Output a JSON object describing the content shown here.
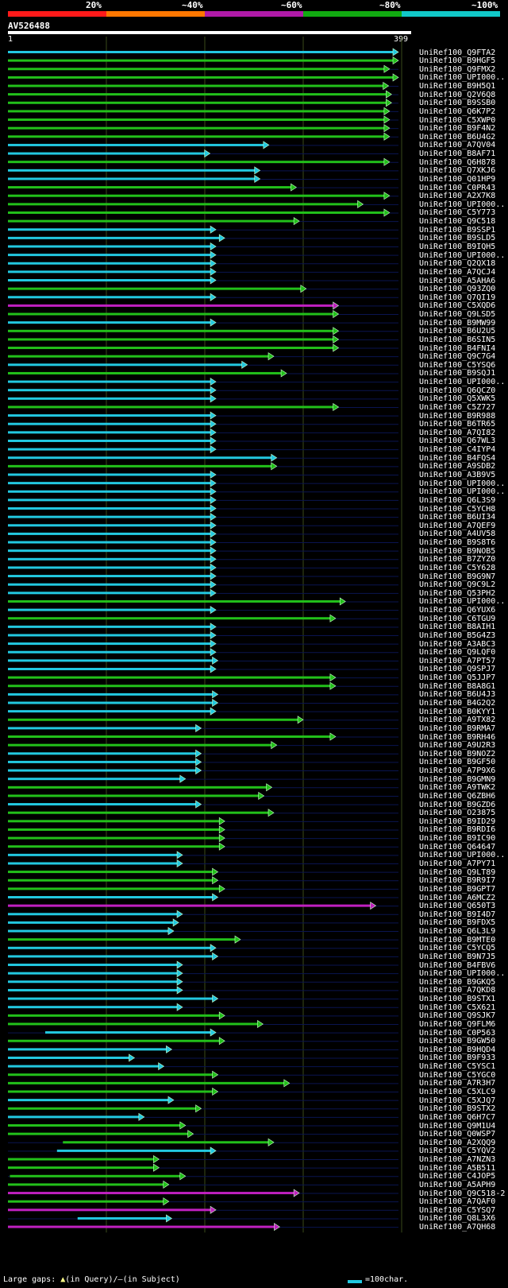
{
  "colors": {
    "band1": "#ff1a1a",
    "band2": "#ff7700",
    "band3": "#b01aa8",
    "band4": "#11aa11",
    "band5": "#11c8c8",
    "cyan": "#22c8e0",
    "green": "#22c01a",
    "magenta": "#c020c0",
    "guide": "#3a4a1a"
  },
  "scale": {
    "labels": [
      "20%",
      "~40%",
      "~60%",
      "~80%",
      "~100%"
    ]
  },
  "query": {
    "name": "AV526488",
    "start": "1",
    "end": "399"
  },
  "hits": [
    {
      "name": "UniRef100_Q9FTA2",
      "c": "c",
      "s": 1,
      "e": 399
    },
    {
      "name": "UniRef100_B9HGF5",
      "c": "g",
      "s": 1,
      "e": 399
    },
    {
      "name": "UniRef100_Q9FMX2",
      "c": "g",
      "s": 1,
      "e": 390
    },
    {
      "name": "UniRef100_UPI000..",
      "c": "g",
      "s": 1,
      "e": 399
    },
    {
      "name": "UniRef100_B9H5Q1",
      "c": "g",
      "s": 1,
      "e": 389
    },
    {
      "name": "UniRef100_Q2V6Q8",
      "c": "g",
      "s": 1,
      "e": 392
    },
    {
      "name": "UniRef100_B9SSB0",
      "c": "g",
      "s": 1,
      "e": 392
    },
    {
      "name": "UniRef100_Q6K7P2",
      "c": "g",
      "s": 1,
      "e": 390
    },
    {
      "name": "UniRef100_C5XWP0",
      "c": "g",
      "s": 1,
      "e": 390
    },
    {
      "name": "UniRef100_B9F4N2",
      "c": "g",
      "s": 1,
      "e": 390
    },
    {
      "name": "UniRef100_B6U4G2",
      "c": "g",
      "s": 1,
      "e": 390
    },
    {
      "name": "UniRef100_A7QV04",
      "c": "c",
      "s": 1,
      "e": 267
    },
    {
      "name": "UniRef100_B8AF71",
      "c": "c",
      "s": 1,
      "e": 207
    },
    {
      "name": "UniRef100_Q6H878",
      "c": "g",
      "s": 1,
      "e": 390
    },
    {
      "name": "UniRef100_Q7XKJ6",
      "c": "c",
      "s": 1,
      "e": 258
    },
    {
      "name": "UniRef100_Q01HP9",
      "c": "c",
      "s": 1,
      "e": 258
    },
    {
      "name": "UniRef100_C0PR43",
      "c": "g",
      "s": 1,
      "e": 295
    },
    {
      "name": "UniRef100_A2X7K8",
      "c": "g",
      "s": 1,
      "e": 390
    },
    {
      "name": "UniRef100_UPI000..",
      "c": "g",
      "s": 1,
      "e": 363
    },
    {
      "name": "UniRef100_C5Y773",
      "c": "g",
      "s": 1,
      "e": 390
    },
    {
      "name": "UniRef100_Q9C518",
      "c": "g",
      "s": 1,
      "e": 298
    },
    {
      "name": "UniRef100_B9SSP1",
      "c": "c",
      "s": 1,
      "e": 213
    },
    {
      "name": "UniRef100_B9SLD5",
      "c": "c",
      "s": 1,
      "e": 222
    },
    {
      "name": "UniRef100_B9IQH5",
      "c": "c",
      "s": 1,
      "e": 213
    },
    {
      "name": "UniRef100_UPI000..",
      "c": "c",
      "s": 1,
      "e": 213
    },
    {
      "name": "UniRef100_Q2QX18",
      "c": "c",
      "s": 1,
      "e": 213
    },
    {
      "name": "UniRef100_A7QCJ4",
      "c": "c",
      "s": 1,
      "e": 213
    },
    {
      "name": "UniRef100_A5AHA6",
      "c": "c",
      "s": 1,
      "e": 213
    },
    {
      "name": "UniRef100_Q93ZQ0",
      "c": "g",
      "s": 1,
      "e": 305
    },
    {
      "name": "UniRef100_Q7QI19",
      "c": "c",
      "s": 1,
      "e": 213
    },
    {
      "name": "UniRef100_C5XQD6",
      "c": "m",
      "s": 1,
      "e": 338
    },
    {
      "name": "UniRef100_Q9LSD5",
      "c": "g",
      "s": 1,
      "e": 338
    },
    {
      "name": "UniRef100_B9MW99",
      "c": "c",
      "s": 1,
      "e": 213
    },
    {
      "name": "UniRef100_B6U2U5",
      "c": "g",
      "s": 1,
      "e": 338
    },
    {
      "name": "UniRef100_B6SIN5",
      "c": "g",
      "s": 1,
      "e": 338
    },
    {
      "name": "UniRef100_B4FNI4",
      "c": "g",
      "s": 1,
      "e": 338
    },
    {
      "name": "UniRef100_Q9C7G4",
      "c": "g",
      "s": 1,
      "e": 272
    },
    {
      "name": "UniRef100_C5YSQ6",
      "c": "c",
      "s": 1,
      "e": 245
    },
    {
      "name": "UniRef100_B9SQJ1",
      "c": "g",
      "s": 1,
      "e": 285
    },
    {
      "name": "UniRef100_UPI000..",
      "c": "c",
      "s": 1,
      "e": 213
    },
    {
      "name": "UniRef100_Q6QCZ0",
      "c": "c",
      "s": 1,
      "e": 213
    },
    {
      "name": "UniRef100_Q5XWK5",
      "c": "c",
      "s": 1,
      "e": 213
    },
    {
      "name": "UniRef100_C5Z727",
      "c": "g",
      "s": 1,
      "e": 338
    },
    {
      "name": "UniRef100_B9R988",
      "c": "c",
      "s": 1,
      "e": 213
    },
    {
      "name": "UniRef100_B6TR65",
      "c": "c",
      "s": 1,
      "e": 213
    },
    {
      "name": "UniRef100_A7QI82",
      "c": "c",
      "s": 1,
      "e": 213
    },
    {
      "name": "UniRef100_Q67WL3",
      "c": "c",
      "s": 1,
      "e": 213
    },
    {
      "name": "UniRef100_C4IYP4",
      "c": "c",
      "s": 1,
      "e": 213
    },
    {
      "name": "UniRef100_B4FQS4",
      "c": "c",
      "s": 1,
      "e": 275
    },
    {
      "name": "UniRef100_A9SDB2",
      "c": "g",
      "s": 1,
      "e": 275
    },
    {
      "name": "UniRef100_A3B9V5",
      "c": "c",
      "s": 1,
      "e": 213
    },
    {
      "name": "UniRef100_UPI000..",
      "c": "c",
      "s": 1,
      "e": 213
    },
    {
      "name": "UniRef100_UPI000..",
      "c": "c",
      "s": 1,
      "e": 213
    },
    {
      "name": "UniRef100_Q6L3S9",
      "c": "c",
      "s": 1,
      "e": 213
    },
    {
      "name": "UniRef100_C5YCH8",
      "c": "c",
      "s": 1,
      "e": 213
    },
    {
      "name": "UniRef100_B6UI34",
      "c": "c",
      "s": 1,
      "e": 213
    },
    {
      "name": "UniRef100_A7QEF9",
      "c": "c",
      "s": 1,
      "e": 213
    },
    {
      "name": "UniRef100_A4UV58",
      "c": "c",
      "s": 1,
      "e": 213
    },
    {
      "name": "UniRef100_B9S8T6",
      "c": "c",
      "s": 1,
      "e": 213
    },
    {
      "name": "UniRef100_B9NOB5",
      "c": "c",
      "s": 1,
      "e": 213
    },
    {
      "name": "UniRef100_B7ZYZ0",
      "c": "c",
      "s": 1,
      "e": 213
    },
    {
      "name": "UniRef100_C5Y628",
      "c": "c",
      "s": 1,
      "e": 213
    },
    {
      "name": "UniRef100_B9G9N7",
      "c": "c",
      "s": 1,
      "e": 213
    },
    {
      "name": "UniRef100_Q9C9L2",
      "c": "c",
      "s": 1,
      "e": 213
    },
    {
      "name": "UniRef100_Q53PH2",
      "c": "c",
      "s": 1,
      "e": 213
    },
    {
      "name": "UniRef100_UPI000..",
      "c": "g",
      "s": 1,
      "e": 345
    },
    {
      "name": "UniRef100_Q6YUX6",
      "c": "c",
      "s": 1,
      "e": 213
    },
    {
      "name": "UniRef100_C6TGU9",
      "c": "g",
      "s": 1,
      "e": 335
    },
    {
      "name": "UniRef100_B8AIH1",
      "c": "c",
      "s": 1,
      "e": 213
    },
    {
      "name": "UniRef100_B5G4Z3",
      "c": "c",
      "s": 1,
      "e": 213
    },
    {
      "name": "UniRef100_A3ABC3",
      "c": "c",
      "s": 1,
      "e": 213
    },
    {
      "name": "UniRef100_Q9LQF0",
      "c": "c",
      "s": 1,
      "e": 213
    },
    {
      "name": "UniRef100_A7PT57",
      "c": "c",
      "s": 1,
      "e": 215
    },
    {
      "name": "UniRef100_Q9SPJ7",
      "c": "c",
      "s": 1,
      "e": 213
    },
    {
      "name": "UniRef100_Q5JJP7",
      "c": "g",
      "s": 1,
      "e": 335
    },
    {
      "name": "UniRef100_B8A8G1",
      "c": "g",
      "s": 1,
      "e": 335
    },
    {
      "name": "UniRef100_B6U4J3",
      "c": "c",
      "s": 1,
      "e": 215
    },
    {
      "name": "UniRef100_B4G2Q2",
      "c": "c",
      "s": 1,
      "e": 215
    },
    {
      "name": "UniRef100_B0KYY1",
      "c": "c",
      "s": 1,
      "e": 213
    },
    {
      "name": "UniRef100_A9TX82",
      "c": "g",
      "s": 1,
      "e": 302
    },
    {
      "name": "UniRef100_B9RMA7",
      "c": "c",
      "s": 1,
      "e": 198
    },
    {
      "name": "UniRef100_B9RH46",
      "c": "g",
      "s": 1,
      "e": 335
    },
    {
      "name": "UniRef100_A9U2R3",
      "c": "g",
      "s": 1,
      "e": 275
    },
    {
      "name": "UniRef100_B9NOZ2",
      "c": "c",
      "s": 1,
      "e": 198
    },
    {
      "name": "UniRef100_B9GF50",
      "c": "c",
      "s": 1,
      "e": 198
    },
    {
      "name": "UniRef100_A7P9X6",
      "c": "c",
      "s": 1,
      "e": 198
    },
    {
      "name": "UniRef100_B9GMN9",
      "c": "c",
      "s": 1,
      "e": 182
    },
    {
      "name": "UniRef100_A9TWK2",
      "c": "g",
      "s": 1,
      "e": 270
    },
    {
      "name": "UniRef100_Q6ZBH6",
      "c": "g",
      "s": 1,
      "e": 262
    },
    {
      "name": "UniRef100_B9GZD6",
      "c": "c",
      "s": 1,
      "e": 198
    },
    {
      "name": "UniRef100_O23875",
      "c": "g",
      "s": 1,
      "e": 272
    },
    {
      "name": "UniRef100_B9ID29",
      "c": "g",
      "s": 1,
      "e": 222
    },
    {
      "name": "UniRef100_B9RDI6",
      "c": "g",
      "s": 1,
      "e": 222
    },
    {
      "name": "UniRef100_B9IC90",
      "c": "g",
      "s": 1,
      "e": 222
    },
    {
      "name": "UniRef100_Q64647",
      "c": "g",
      "s": 1,
      "e": 222
    },
    {
      "name": "UniRef100_UPI000..",
      "c": "c",
      "s": 1,
      "e": 179
    },
    {
      "name": "UniRef100_A7PY71",
      "c": "c",
      "s": 1,
      "e": 179
    },
    {
      "name": "UniRef100_Q9LT89",
      "c": "g",
      "s": 1,
      "e": 215
    },
    {
      "name": "UniRef100_B9R9I7",
      "c": "g",
      "s": 1,
      "e": 215
    },
    {
      "name": "UniRef100_B9GPT7",
      "c": "g",
      "s": 1,
      "e": 222
    },
    {
      "name": "UniRef100_A6MCZ2",
      "c": "c",
      "s": 1,
      "e": 215
    },
    {
      "name": "UniRef100_Q650T3",
      "c": "m",
      "s": 1,
      "e": 376
    },
    {
      "name": "UniRef100_B9I4D7",
      "c": "c",
      "s": 1,
      "e": 179
    },
    {
      "name": "UniRef100_B9FDX5",
      "c": "c",
      "s": 1,
      "e": 175
    },
    {
      "name": "UniRef100_Q6L3L9",
      "c": "c",
      "s": 1,
      "e": 170
    },
    {
      "name": "UniRef100_B9MTE0",
      "c": "g",
      "s": 1,
      "e": 238
    },
    {
      "name": "UniRef100_C5YCQ5",
      "c": "c",
      "s": 1,
      "e": 213
    },
    {
      "name": "UniRef100_B9N7J5",
      "c": "c",
      "s": 1,
      "e": 215
    },
    {
      "name": "UniRef100_B4FBV6",
      "c": "c",
      "s": 1,
      "e": 179
    },
    {
      "name": "UniRef100_UPI000..",
      "c": "c",
      "s": 1,
      "e": 179
    },
    {
      "name": "UniRef100_B9GKQ5",
      "c": "c",
      "s": 1,
      "e": 179
    },
    {
      "name": "UniRef100_A7QKD8",
      "c": "c",
      "s": 1,
      "e": 179
    },
    {
      "name": "UniRef100_B9STX1",
      "c": "c",
      "s": 1,
      "e": 215
    },
    {
      "name": "UniRef100_C5X621",
      "c": "c",
      "s": 1,
      "e": 179
    },
    {
      "name": "UniRef100_Q9SJK7",
      "c": "g",
      "s": 1,
      "e": 222
    },
    {
      "name": "UniRef100_Q9FLM6",
      "c": "g",
      "s": 1,
      "e": 261
    },
    {
      "name": "UniRef100_C0P563",
      "c": "c",
      "s": 39,
      "e": 213
    },
    {
      "name": "UniRef100_B9GW50",
      "c": "g",
      "s": 1,
      "e": 222
    },
    {
      "name": "UniRef100_B9HQD4",
      "c": "c",
      "s": 1,
      "e": 168
    },
    {
      "name": "UniRef100_B9F933",
      "c": "c",
      "s": 1,
      "e": 130
    },
    {
      "name": "UniRef100_C5YSC1",
      "c": "c",
      "s": 1,
      "e": 160
    },
    {
      "name": "UniRef100_C5YGC0",
      "c": "g",
      "s": 1,
      "e": 215
    },
    {
      "name": "UniRef100_A7R3H7",
      "c": "g",
      "s": 1,
      "e": 288
    },
    {
      "name": "UniRef100_C5XLC9",
      "c": "g",
      "s": 1,
      "e": 215
    },
    {
      "name": "UniRef100_C5XJQ7",
      "c": "c",
      "s": 1,
      "e": 170
    },
    {
      "name": "UniRef100_B9STX2",
      "c": "g",
      "s": 1,
      "e": 198
    },
    {
      "name": "UniRef100_Q6H7C7",
      "c": "c",
      "s": 1,
      "e": 140
    },
    {
      "name": "UniRef100_Q9M1U4",
      "c": "g",
      "s": 1,
      "e": 182
    },
    {
      "name": "UniRef100_Q0WSP7",
      "c": "g",
      "s": 1,
      "e": 190
    },
    {
      "name": "UniRef100_A2XQQ9",
      "c": "g",
      "s": 57,
      "e": 272
    },
    {
      "name": "UniRef100_C5YQV2",
      "c": "c",
      "s": 51,
      "e": 213
    },
    {
      "name": "UniRef100_A7NZN3",
      "c": "g",
      "s": 1,
      "e": 155
    },
    {
      "name": "UniRef100_A5B511",
      "c": "g",
      "s": 1,
      "e": 155
    },
    {
      "name": "UniRef100_C4JOP5",
      "c": "g",
      "s": 3,
      "e": 182
    },
    {
      "name": "UniRef100_A5APH9",
      "c": "g",
      "s": 1,
      "e": 165
    },
    {
      "name": "UniRef100_Q9C518-2",
      "c": "m",
      "s": 1,
      "e": 298
    },
    {
      "name": "UniRef100_A7QAF0",
      "c": "g",
      "s": 1,
      "e": 165
    },
    {
      "name": "UniRef100_C5YSQ7",
      "c": "m",
      "s": 1,
      "e": 213
    },
    {
      "name": "UniRef100_Q8L3X6",
      "c": "c",
      "s": 72,
      "e": 168
    },
    {
      "name": "UniRef100_A7QH68",
      "c": "m",
      "s": 1,
      "e": 278
    }
  ],
  "footer": {
    "label": "Large gaps:",
    "q_glyph": "▲",
    "q_text": "(in Query)/",
    "s_glyph": "–",
    "s_text": "(in Subject)",
    "legend": "=100char."
  }
}
